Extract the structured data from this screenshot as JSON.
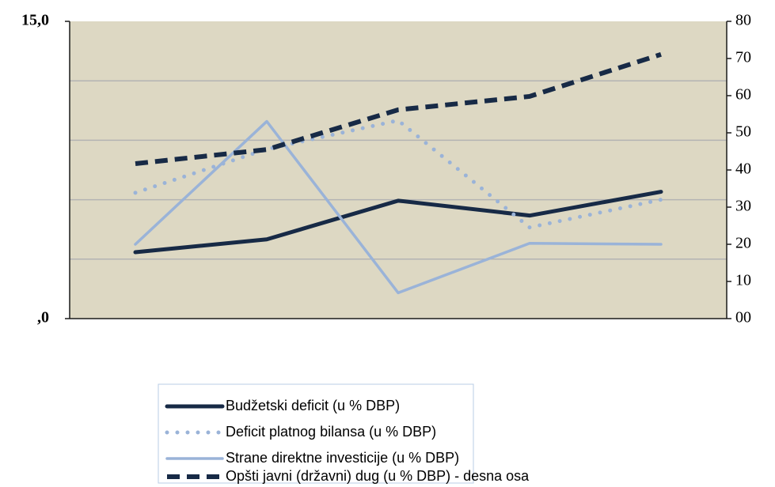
{
  "chart_data": {
    "type": "line",
    "categories": [
      null,
      null,
      null,
      null,
      null
    ],
    "ylim": [
      0,
      15
    ],
    "yticks": [
      {
        "value": 0,
        "label": ",0"
      },
      {
        "value": 15,
        "label": "15,0"
      }
    ],
    "grid_lines": [
      3,
      6,
      9,
      12
    ],
    "y2lim": [
      0,
      80
    ],
    "y2ticks": [
      {
        "value": 0,
        "label": "00"
      },
      10,
      20,
      30,
      40,
      50,
      60,
      70,
      80
    ],
    "series": [
      {
        "name": "Budžetski deficit (u % DBP)",
        "color": "#172a46",
        "style": "solid",
        "values": [
          3.35,
          4.0,
          5.95,
          5.2,
          6.4
        ]
      },
      {
        "name": "Deficit platnog bilansa (u % DBP)",
        "color": "#9ab3d8",
        "style": "dotted",
        "values": [
          6.35,
          8.55,
          10.0,
          4.6,
          6.0
        ]
      },
      {
        "name": "Strane direktne investicije (u % DBP)",
        "color": "#9ab3d8",
        "style": "solid",
        "values": [
          3.75,
          9.95,
          1.3,
          3.8,
          3.75
        ]
      },
      {
        "name": "Opšti javni (državni) dug (u % DBP) - desna osa",
        "color": "#172a46",
        "style": "dashed",
        "axis": "y2",
        "values": [
          41.7,
          45.5,
          56.2,
          59.8,
          71.1
        ]
      }
    ]
  }
}
